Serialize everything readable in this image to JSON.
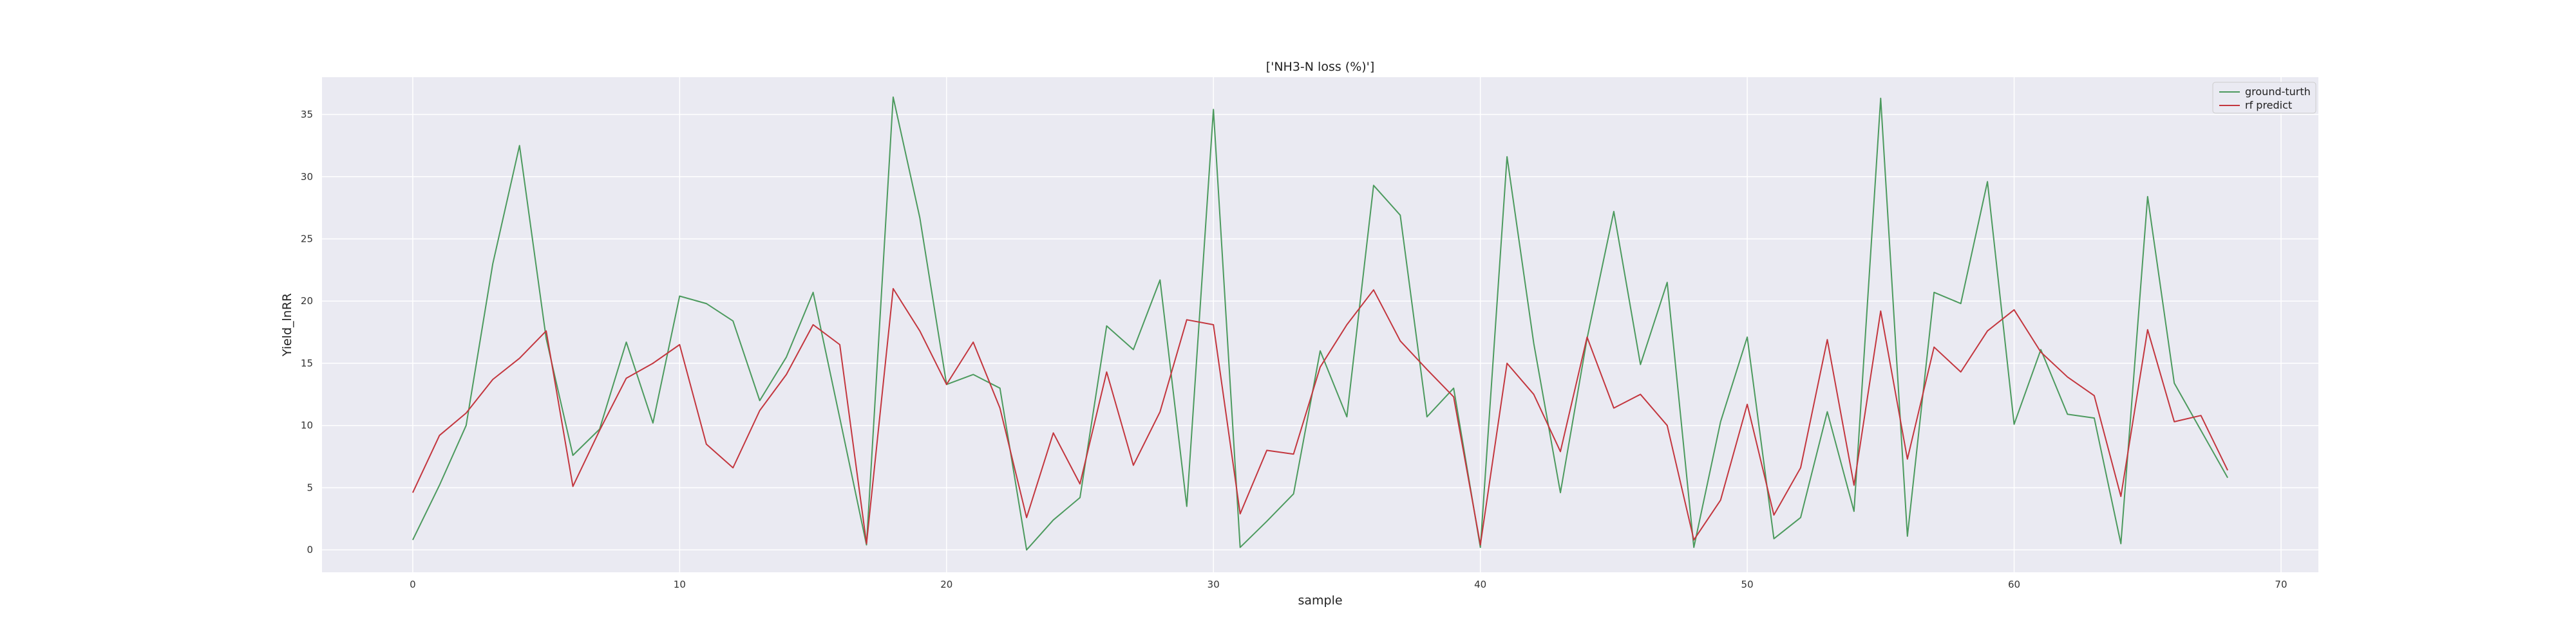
{
  "chart_data": {
    "type": "line",
    "title": "['NH3-N loss (%)']",
    "xlabel": "sample",
    "ylabel": "Yield_lnRR",
    "xlim": [
      -3.4,
      71.4
    ],
    "ylim": [
      -1.8,
      38.0
    ],
    "xticks": [
      0,
      10,
      20,
      30,
      40,
      50,
      60,
      70
    ],
    "yticks": [
      0,
      5,
      10,
      15,
      20,
      25,
      30,
      35
    ],
    "grid": true,
    "legend_position": "top-right",
    "series": [
      {
        "name": "ground-turth",
        "color": "#4c9a5e",
        "values": [
          0.8,
          5.2,
          10.0,
          23.0,
          32.5,
          17.0,
          7.6,
          9.7,
          16.7,
          10.2,
          20.4,
          19.8,
          18.4,
          12.0,
          15.5,
          20.7,
          10.6,
          0.4,
          36.4,
          26.7,
          13.3,
          14.1,
          13.0,
          0.0,
          2.4,
          4.2,
          18.0,
          16.1,
          21.7,
          3.5,
          35.4,
          0.2,
          2.3,
          4.5,
          16.0,
          10.7,
          29.3,
          26.9,
          10.7,
          13.0,
          0.2,
          31.6,
          16.6,
          4.6,
          17.0,
          27.2,
          14.9,
          21.5,
          0.2,
          10.3,
          17.1,
          0.9,
          2.6,
          11.1,
          3.1,
          36.3,
          1.1,
          20.7,
          19.8,
          29.6,
          10.1,
          16.1,
          10.9,
          10.6,
          0.5,
          28.4,
          13.4,
          9.6,
          5.8
        ]
      },
      {
        "name": "rf predict",
        "color": "#c3363e",
        "values": [
          4.6,
          9.2,
          11.0,
          13.7,
          15.4,
          17.6,
          5.1,
          9.6,
          13.8,
          15.0,
          16.5,
          8.5,
          6.6,
          11.2,
          14.1,
          18.1,
          16.5,
          0.5,
          21.0,
          17.6,
          13.3,
          16.7,
          11.4,
          2.6,
          9.4,
          5.3,
          14.3,
          6.8,
          11.1,
          18.5,
          18.1,
          2.9,
          8.0,
          7.7,
          14.7,
          18.1,
          20.9,
          16.8,
          14.5,
          12.3,
          0.4,
          15.0,
          12.5,
          7.9,
          17.1,
          11.4,
          12.5,
          10.0,
          0.8,
          4.0,
          11.7,
          2.8,
          6.6,
          16.9,
          5.2,
          19.2,
          7.3,
          16.3,
          14.3,
          17.6,
          19.3,
          15.9,
          13.9,
          12.4,
          4.3,
          17.7,
          10.3,
          10.8,
          6.4
        ]
      }
    ]
  }
}
